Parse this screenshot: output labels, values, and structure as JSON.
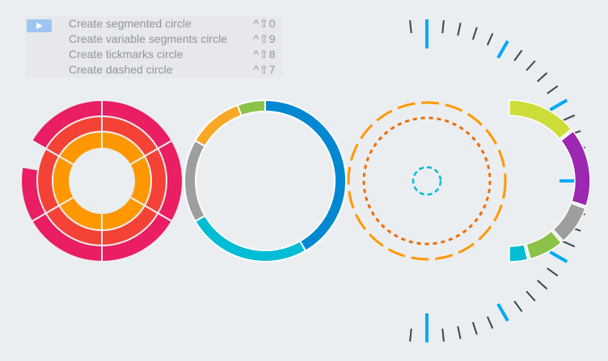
{
  "menu": {
    "items": [
      {
        "label": "Create segmented circle",
        "shortcut": "^⇧0"
      },
      {
        "label": "Create variable segments circle",
        "shortcut": "^⇧9"
      },
      {
        "label": "Create tickmarks circle",
        "shortcut": "^⇧8"
      },
      {
        "label": "Create dashed circle",
        "shortcut": "^⇧7"
      }
    ]
  },
  "icons": {
    "play": "play-icon"
  },
  "colors": {
    "background": "#ebeef1",
    "pink": "#e91e63",
    "red": "#f44336",
    "orange": "#ff9800",
    "amber": "#f9a825",
    "green": "#8bc34a",
    "blue": "#0288d1",
    "cyan": "#00bcd4",
    "gray": "#9e9e9e",
    "lime": "#cddc39",
    "purple": "#9c27b0",
    "tick_dark": "#37474f",
    "tick_blue": "#03a9f4",
    "dash_orange": "#ff9800",
    "dash_deep_orange": "#ef6c00",
    "dash_cyan": "#00bcd4"
  }
}
